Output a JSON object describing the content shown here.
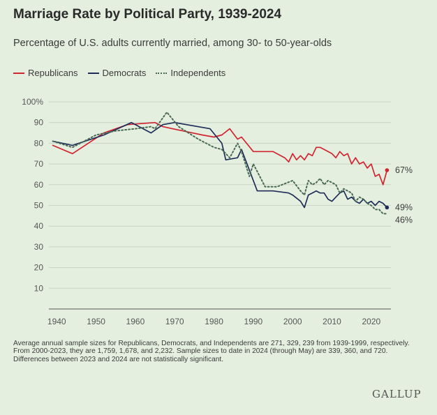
{
  "title": "Marriage Rate by Political Party, 1939-2024",
  "subtitle": "Percentage of U.S. adults currently married, among 30- to 50-year-olds",
  "footnote": "Average annual sample sizes for Republicans, Democrats, and Independents are 271, 329, 239 from 1939-1999, respectively. From 2000-2023, they are 1,759, 1,678, and 2,232. Sample sizes to date in 2024 (through May) are 339, 360, and 720. Differences between 2023 and 2024 are not statistically significant.",
  "brand": "GALLUP",
  "chart_data": {
    "type": "line",
    "title": "Marriage Rate by Political Party, 1939-2024",
    "subtitle": "Percentage of U.S. adults currently married, among 30- to 50-year-olds",
    "xlim": [
      1938,
      2025
    ],
    "ylim": [
      0,
      100
    ],
    "x_ticks": [
      1940,
      1950,
      1960,
      1970,
      1980,
      1990,
      2000,
      2010,
      2020
    ],
    "y_ticks": [
      10,
      20,
      30,
      40,
      50,
      60,
      70,
      80,
      90,
      100
    ],
    "y_tick_labels": [
      "10",
      "20",
      "30",
      "40",
      "50",
      "60",
      "70",
      "80",
      "90",
      "100%"
    ],
    "grid": "horizontal",
    "legend_position": "top-left",
    "series": [
      {
        "name": "Republicans",
        "color": "#d1242f",
        "style": "solid",
        "end_label": "67%",
        "x": [
          1939,
          1944,
          1952,
          1958,
          1965,
          1967,
          1972,
          1977,
          1980,
          1982,
          1984,
          1986,
          1987,
          1990,
          1995,
          1998,
          1999,
          2000,
          2001,
          2002,
          2003,
          2004,
          2005,
          2006,
          2007,
          2008,
          2009,
          2010,
          2011,
          2012,
          2013,
          2014,
          2015,
          2016,
          2017,
          2018,
          2019,
          2020,
          2021,
          2022,
          2023,
          2024
        ],
        "values": [
          79,
          75,
          85,
          89,
          90,
          88,
          86,
          84,
          83,
          84,
          87,
          82,
          83,
          76,
          76,
          73,
          71,
          75,
          72,
          74,
          72,
          75,
          74,
          78,
          78,
          77,
          76,
          75,
          73,
          76,
          74,
          75,
          70,
          73,
          70,
          71,
          68,
          70,
          64,
          65,
          60,
          67
        ]
      },
      {
        "name": "Democrats",
        "color": "#1f2d5a",
        "style": "solid",
        "end_label": "49%",
        "x": [
          1939,
          1944,
          1952,
          1959,
          1964,
          1967,
          1970,
          1979,
          1982,
          1983,
          1986,
          1987,
          1991,
          1995,
          1999,
          2000,
          2002,
          2003,
          2004,
          2005,
          2006,
          2007,
          2008,
          2009,
          2010,
          2011,
          2012,
          2013,
          2014,
          2015,
          2016,
          2017,
          2018,
          2019,
          2020,
          2021,
          2022,
          2023,
          2024
        ],
        "values": [
          81,
          79,
          84,
          90,
          85,
          89,
          90,
          87,
          80,
          72,
          73,
          77,
          57,
          57,
          56,
          55,
          52,
          49,
          55,
          56,
          57,
          56,
          56,
          53,
          52,
          54,
          56,
          57,
          53,
          54,
          52,
          51,
          53,
          51,
          52,
          50,
          52,
          51,
          49
        ]
      },
      {
        "name": "Independents",
        "color": "#4a6a55",
        "style": "dotted",
        "end_label": "46%",
        "x": [
          1939,
          1944,
          1950,
          1955,
          1960,
          1964,
          1965,
          1968,
          1971,
          1976,
          1980,
          1982,
          1984,
          1986,
          1987,
          1989,
          1990,
          1993,
          1996,
          2000,
          2002,
          2003,
          2004,
          2005,
          2006,
          2007,
          2008,
          2009,
          2010,
          2011,
          2012,
          2013,
          2014,
          2015,
          2016,
          2017,
          2018,
          2019,
          2020,
          2021,
          2022,
          2023,
          2024
        ],
        "values": [
          81,
          78,
          84,
          86,
          87,
          88,
          87,
          95,
          88,
          82,
          78,
          77,
          73,
          80,
          76,
          64,
          70,
          59,
          59,
          62,
          57,
          55,
          62,
          60,
          61,
          63,
          60,
          62,
          61,
          60,
          56,
          58,
          57,
          56,
          52,
          54,
          53,
          51,
          50,
          48,
          48,
          46,
          46
        ]
      }
    ]
  }
}
